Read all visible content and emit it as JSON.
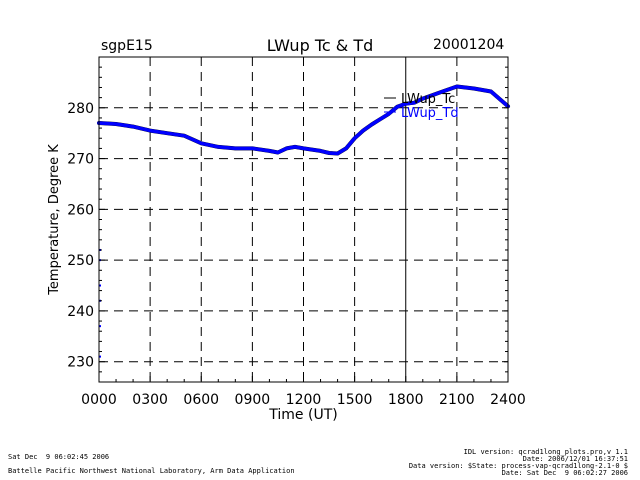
{
  "header": {
    "site": "sgpE15",
    "title": "LWup Tc & Td",
    "date": "20001204"
  },
  "footer": {
    "left_line1": "Sat Dec  9 06:02:45 2006",
    "left_line2": "Battelle Pacific Northwest National Laboratory, Arm Data Application",
    "right_line1": "IDL version: qcrad1long_plots.pro,v 1.1",
    "right_line2": "Date: 2006/12/01 16:37:51",
    "right_line3": "Data version: $State: process-vap-qcrad1long-2.1-0 $",
    "right_line4": "Date: Sat Dec  9 06:02:27 2006"
  },
  "colors": {
    "tc_series": "#000000",
    "td_series": "#0000ff",
    "axes": "#000000",
    "grid": "#000000"
  },
  "chart_data": {
    "type": "line",
    "title": "LWup Tc & Td",
    "xlabel": "Time (UT)",
    "ylabel": "Temperature, Degree K",
    "xlim": [
      0,
      2400
    ],
    "ylim": [
      226,
      290
    ],
    "x_ticks": [
      0,
      300,
      600,
      900,
      1200,
      1500,
      1800,
      2100,
      2400
    ],
    "x_tick_labels": [
      "0000",
      "0300",
      "0600",
      "0900",
      "1200",
      "1500",
      "1800",
      "2100",
      "2400"
    ],
    "y_ticks": [
      230,
      240,
      250,
      260,
      270,
      280
    ],
    "y_tick_labels": [
      "230",
      "240",
      "250",
      "260",
      "270",
      "280"
    ],
    "grid": true,
    "legend_position": "top-right",
    "series": [
      {
        "name": "LWup_Tc",
        "color": "#000000",
        "points": [
          [
            0,
            277
          ],
          [
            100,
            276.8
          ],
          [
            200,
            276.3
          ],
          [
            300,
            275.5
          ],
          [
            400,
            275
          ],
          [
            500,
            274.5
          ],
          [
            600,
            273
          ],
          [
            700,
            272.3
          ],
          [
            800,
            272
          ],
          [
            900,
            272
          ],
          [
            1000,
            271.5
          ],
          [
            1050,
            271.2
          ],
          [
            1100,
            272
          ],
          [
            1150,
            272.3
          ],
          [
            1200,
            272
          ],
          [
            1300,
            271.5
          ],
          [
            1350,
            271.1
          ],
          [
            1400,
            271
          ],
          [
            1450,
            272
          ],
          [
            1500,
            274
          ],
          [
            1550,
            275.5
          ],
          [
            1600,
            276.7
          ],
          [
            1700,
            278.8
          ],
          [
            1750,
            280.2
          ],
          [
            1800,
            280.8
          ],
          [
            1850,
            281
          ],
          [
            1900,
            281.8
          ],
          [
            2000,
            283
          ],
          [
            2100,
            284.2
          ],
          [
            2200,
            283.8
          ],
          [
            2300,
            283.2
          ],
          [
            2400,
            280.3
          ]
        ]
      },
      {
        "name": "LWup_Td",
        "color": "#0000ff",
        "points": [
          [
            0,
            277
          ],
          [
            100,
            276.8
          ],
          [
            200,
            276.3
          ],
          [
            300,
            275.5
          ],
          [
            400,
            275
          ],
          [
            500,
            274.5
          ],
          [
            600,
            273
          ],
          [
            700,
            272.3
          ],
          [
            800,
            272
          ],
          [
            900,
            272
          ],
          [
            1000,
            271.5
          ],
          [
            1050,
            271.2
          ],
          [
            1100,
            272
          ],
          [
            1150,
            272.3
          ],
          [
            1200,
            272
          ],
          [
            1300,
            271.5
          ],
          [
            1350,
            271.1
          ],
          [
            1400,
            271
          ],
          [
            1450,
            272
          ],
          [
            1500,
            274
          ],
          [
            1550,
            275.5
          ],
          [
            1600,
            276.7
          ],
          [
            1700,
            278.8
          ],
          [
            1750,
            280.2
          ],
          [
            1800,
            280.8
          ],
          [
            1850,
            281
          ],
          [
            1900,
            281.8
          ],
          [
            2000,
            283
          ],
          [
            2100,
            284.2
          ],
          [
            2200,
            283.8
          ],
          [
            2300,
            283.2
          ],
          [
            2400,
            280.3
          ]
        ]
      }
    ],
    "td_scatter": [
      [
        0,
        252
      ],
      [
        0,
        250
      ],
      [
        0,
        245
      ],
      [
        0,
        242
      ],
      [
        0,
        237
      ],
      [
        0,
        231
      ]
    ]
  }
}
